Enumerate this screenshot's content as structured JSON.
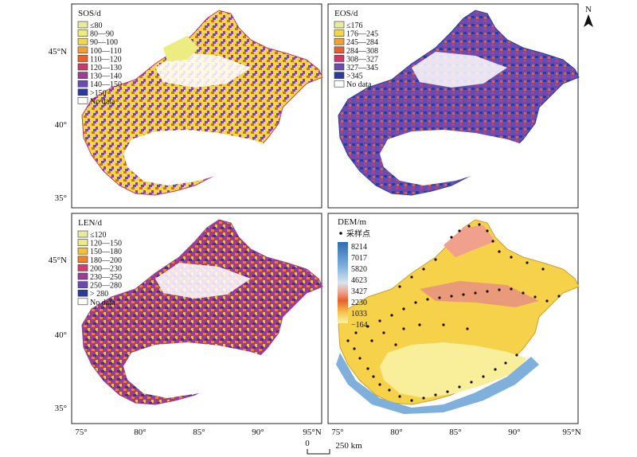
{
  "panels": [
    {
      "id": "sos",
      "title": "SOS/d",
      "legend": [
        {
          "label": "≤80",
          "color": "#e8eaa0"
        },
        {
          "label": "80—90",
          "color": "#ecec80"
        },
        {
          "label": "90—100",
          "color": "#f0d848"
        },
        {
          "label": "100—110",
          "color": "#f4a030"
        },
        {
          "label": "110—120",
          "color": "#e8602c"
        },
        {
          "label": "120—130",
          "color": "#c83a6a"
        },
        {
          "label": "130—140",
          "color": "#9c3c98"
        },
        {
          "label": "140—150",
          "color": "#6a4cb0"
        },
        {
          "label": ">150",
          "color": "#2a3aa0"
        },
        {
          "label": "No data",
          "color": "#ffffff"
        }
      ]
    },
    {
      "id": "eos",
      "title": "EOS/d",
      "legend": [
        {
          "label": "≤176",
          "color": "#e8eaa0"
        },
        {
          "label": "176—245",
          "color": "#f0d848"
        },
        {
          "label": "245—284",
          "color": "#f4a030"
        },
        {
          "label": "284—308",
          "color": "#e8602c"
        },
        {
          "label": "308—327",
          "color": "#c83a6a"
        },
        {
          "label": "327—345",
          "color": "#6a4cb0"
        },
        {
          "label": ">345",
          "color": "#2a3aa0"
        },
        {
          "label": "No data",
          "color": "#ffffff"
        }
      ]
    },
    {
      "id": "len",
      "title": "LEN/d",
      "legend": [
        {
          "label": "≤120",
          "color": "#e8eaa0"
        },
        {
          "label": "120—150",
          "color": "#ecec80"
        },
        {
          "label": "150—180",
          "color": "#f0c040"
        },
        {
          "label": "180—200",
          "color": "#f08030"
        },
        {
          "label": "200—230",
          "color": "#d83a70"
        },
        {
          "label": "230—250",
          "color": "#9c3c98"
        },
        {
          "label": "250—280",
          "color": "#6a4cb0"
        },
        {
          "label": "> 280",
          "color": "#2a3aa0"
        },
        {
          "label": "No data",
          "color": "#ffffff"
        }
      ]
    },
    {
      "id": "dem",
      "title": "DEM/m",
      "points_label": "采样点",
      "ramp_labels": [
        "8214",
        "7017",
        "5820",
        "4623",
        "3427",
        "2230",
        "1033",
        "−164"
      ],
      "ramp_colors": [
        "#2e6db4",
        "#4f90cc",
        "#82b2dc",
        "#c0d8e8",
        "#f2a38c",
        "#e8602c",
        "#f4c04a",
        "#f8f4a0"
      ]
    }
  ],
  "axes": {
    "x_ticks": [
      "75°",
      "80°",
      "85°",
      "90°",
      "95°N"
    ],
    "y_ticks_top": [
      "45°N",
      "40°",
      "35°"
    ],
    "y_ticks_bottom": [
      "45°N",
      "40°",
      "35°"
    ]
  },
  "north_label": "N",
  "scalebar": {
    "start": "0",
    "end": "250 km"
  }
}
